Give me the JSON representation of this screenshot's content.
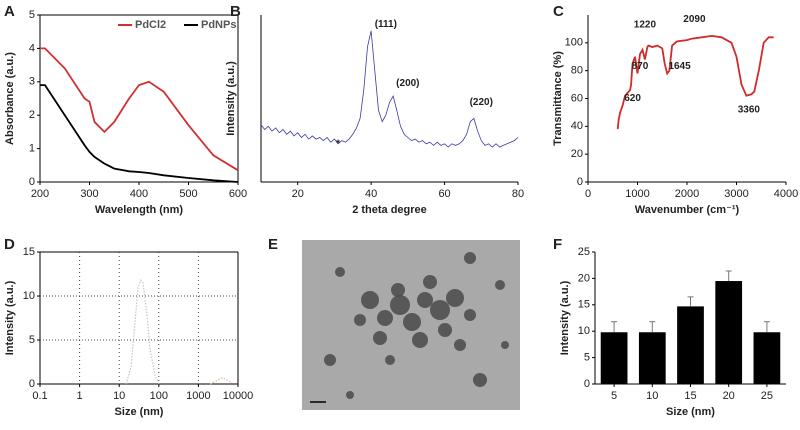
{
  "chart_data": [
    {
      "type": "line",
      "label": "A",
      "xlabel": "Wavelength (nm)",
      "ylabel": "Absorbance (a.u.)",
      "x": [
        200,
        210,
        250,
        290,
        300,
        310,
        330,
        350,
        380,
        400,
        420,
        450,
        500,
        550,
        600
      ],
      "series": [
        {
          "name": "PdCl2",
          "color": "#d03030",
          "values": [
            4.0,
            4.0,
            3.4,
            2.5,
            2.4,
            1.8,
            1.5,
            1.8,
            2.5,
            2.9,
            3.0,
            2.7,
            1.7,
            0.8,
            0.35
          ]
        },
        {
          "name": "PdNPs",
          "color": "#000000",
          "values": [
            2.9,
            2.9,
            2.0,
            1.1,
            0.9,
            0.75,
            0.55,
            0.4,
            0.32,
            0.3,
            0.27,
            0.2,
            0.12,
            0.05,
            0.0
          ]
        }
      ],
      "xlim": [
        200,
        600
      ],
      "xticks": [
        200,
        300,
        400,
        500,
        600
      ],
      "ylim": [
        0,
        5
      ],
      "yticks": [
        0,
        1,
        2,
        3,
        4,
        5
      ],
      "legend": "top-right"
    },
    {
      "type": "line",
      "label": "B",
      "xlabel": "2 theta degree",
      "ylabel": "Intensity (a.u.)",
      "x": [
        10,
        11,
        12,
        13,
        14,
        15,
        16,
        17,
        18,
        19,
        20,
        21,
        22,
        23,
        24,
        25,
        26,
        27,
        28,
        29,
        30,
        31,
        32,
        33,
        34,
        35,
        36,
        37,
        38,
        39,
        40,
        41,
        42,
        43,
        44,
        45,
        46,
        47,
        48,
        49,
        50,
        51,
        52,
        53,
        54,
        55,
        56,
        57,
        58,
        59,
        60,
        61,
        62,
        63,
        64,
        65,
        66,
        67,
        68,
        69,
        70,
        71,
        72,
        73,
        74,
        75,
        76,
        77,
        78,
        79,
        80
      ],
      "series": [
        {
          "color": "#3a3aa8",
          "values": [
            36,
            33,
            35,
            32,
            34,
            31,
            33,
            30,
            32,
            29,
            31,
            28,
            30,
            27,
            29,
            27,
            28,
            26,
            28,
            25,
            27,
            24,
            26,
            25,
            27,
            30,
            34,
            40,
            58,
            85,
            95,
            70,
            45,
            38,
            42,
            50,
            54,
            45,
            35,
            30,
            28,
            26,
            27,
            25,
            26,
            24,
            25,
            23,
            25,
            23,
            24,
            22,
            24,
            23,
            24,
            26,
            30,
            38,
            40,
            32,
            26,
            23,
            24,
            22,
            24,
            22,
            23,
            24,
            25,
            26,
            28
          ]
        }
      ],
      "xlim": [
        10,
        80
      ],
      "xticks": [
        20,
        40,
        60,
        80
      ],
      "ylim": [
        0,
        105
      ],
      "annotations": [
        {
          "text": "(111)",
          "x": 44,
          "y": 99
        },
        {
          "text": "(200)",
          "x": 50,
          "y": 62
        },
        {
          "text": "(220)",
          "x": 70,
          "y": 50
        },
        {
          "text": "*",
          "x": 31,
          "y": 24
        }
      ]
    },
    {
      "type": "line",
      "label": "C",
      "xlabel": "Wavenumber (cm⁻¹)",
      "ylabel": "Transmittance (%)",
      "x": [
        600,
        620,
        650,
        700,
        750,
        800,
        850,
        870,
        900,
        950,
        1000,
        1050,
        1100,
        1150,
        1200,
        1220,
        1300,
        1400,
        1500,
        1550,
        1600,
        1645,
        1700,
        1800,
        2000,
        2090,
        2300,
        2500,
        2700,
        2900,
        3000,
        3100,
        3200,
        3300,
        3360,
        3450,
        3550,
        3650,
        3750
      ],
      "series": [
        {
          "color": "#d02a2a",
          "values": [
            38,
            45,
            50,
            55,
            62,
            64,
            66,
            70,
            85,
            90,
            78,
            92,
            95,
            88,
            97,
            98,
            97,
            98,
            96,
            85,
            78,
            80,
            98,
            101,
            102,
            103,
            104,
            105,
            104,
            100,
            90,
            70,
            62,
            63,
            65,
            80,
            100,
            104,
            104
          ]
        }
      ],
      "xlim": [
        0,
        4000
      ],
      "xticks": [
        0,
        1000,
        2000,
        3000,
        4000
      ],
      "ylim": [
        0,
        120
      ],
      "yticks": [
        0,
        20,
        40,
        60,
        80,
        100
      ],
      "annotations": [
        {
          "text": "620",
          "x": 900,
          "y": 60
        },
        {
          "text": "870",
          "x": 1050,
          "y": 83
        },
        {
          "text": "1220",
          "x": 1150,
          "y": 113
        },
        {
          "text": "1645",
          "x": 1850,
          "y": 83
        },
        {
          "text": "2090",
          "x": 2150,
          "y": 117
        },
        {
          "text": "3360",
          "x": 3250,
          "y": 52
        }
      ]
    },
    {
      "type": "line",
      "label": "D",
      "xlabel": "Size (nm)",
      "ylabel": "Intensity (a.u.)",
      "series": [
        {
          "color": "#c4c4c4",
          "x": [
            15,
            20,
            25,
            30,
            35,
            40,
            50,
            60,
            80,
            100
          ],
          "values": [
            0,
            2,
            7,
            11,
            11.8,
            11.5,
            8,
            4,
            1,
            0
          ]
        },
        {
          "color": "#e3b99a",
          "x": [
            2000,
            3000,
            4000,
            5000,
            7000
          ],
          "values": [
            0,
            0.4,
            0.7,
            0.5,
            0.1
          ]
        }
      ],
      "xscale": "log",
      "xlim": [
        0.1,
        10000
      ],
      "xticks": [
        0.1,
        1,
        10,
        100,
        1000,
        10000
      ],
      "ylim": [
        0,
        15
      ],
      "yticks": [
        0,
        5,
        10,
        15
      ],
      "grid": true
    },
    {
      "type": "image",
      "label": "E"
    },
    {
      "type": "bar",
      "label": "F",
      "xlabel": "Size (nm)",
      "ylabel": "Intensity (a.u.)",
      "categories": [
        "5",
        "10",
        "15",
        "20",
        "25"
      ],
      "values": [
        9.8,
        9.8,
        14.7,
        19.5,
        9.8
      ],
      "errors": [
        2,
        2,
        1.8,
        1.9,
        2
      ],
      "color": "#000000",
      "ylim": [
        0,
        25
      ],
      "yticks": [
        0,
        5,
        10,
        15,
        20,
        25
      ]
    }
  ]
}
